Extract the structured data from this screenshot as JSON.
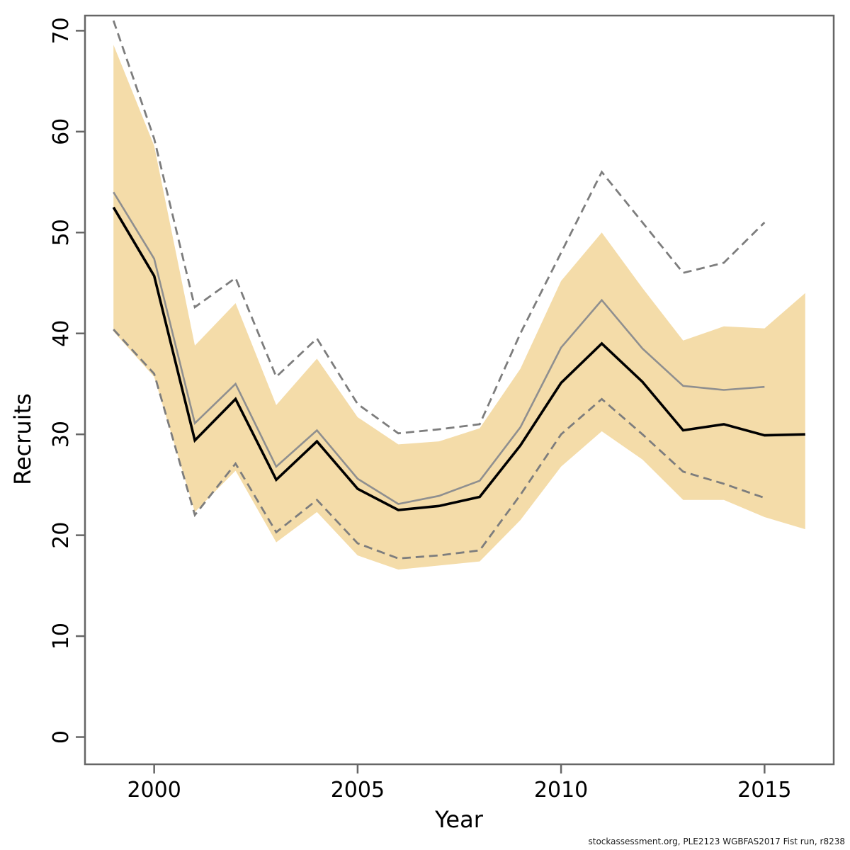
{
  "footer": {
    "text": "stockassessment.org, PLE2123 WGBFAS2017 Fist run, r8238"
  },
  "chart_data": {
    "type": "line",
    "title": "",
    "xlabel": "Year",
    "ylabel": "Recruits",
    "xlim": [
      1998.3,
      2016.7
    ],
    "ylim": [
      -2.7,
      71.5
    ],
    "x_ticks": [
      2000,
      2005,
      2010,
      2015
    ],
    "y_ticks": [
      0,
      10,
      20,
      30,
      40,
      50,
      60,
      70
    ],
    "grid": false,
    "legend": "none",
    "years": [
      1999,
      2000,
      2001,
      2002,
      2003,
      2004,
      2005,
      2006,
      2007,
      2008,
      2009,
      2010,
      2011,
      2012,
      2013,
      2014,
      2015,
      2016
    ],
    "band": {
      "upper": [
        68.6,
        58.6,
        38.8,
        43.0,
        32.9,
        37.5,
        31.7,
        29.0,
        29.3,
        30.6,
        36.5,
        45.2,
        50.0,
        44.5,
        39.3,
        40.7,
        40.5,
        44.0
      ],
      "lower": [
        40.2,
        35.7,
        22.3,
        26.4,
        19.3,
        22.3,
        18.0,
        16.6,
        17.0,
        17.4,
        21.5,
        26.8,
        30.3,
        27.5,
        23.5,
        23.5,
        21.8,
        20.6
      ]
    },
    "series": [
      {
        "name": "comparison-ci-upper",
        "style": "dashed-gray",
        "values": [
          71.0,
          59.3,
          42.6,
          45.5,
          35.7,
          39.5,
          33.0,
          30.1,
          30.5,
          31.0,
          40.0,
          48.0,
          56.0,
          51.0,
          46.0,
          47.0,
          51.0
        ]
      },
      {
        "name": "comparison-ci-lower",
        "style": "dashed-gray",
        "values": [
          40.4,
          36.0,
          22.0,
          27.1,
          20.3,
          23.5,
          19.2,
          17.7,
          18.0,
          18.5,
          24.0,
          30.0,
          33.5,
          30.0,
          26.3,
          25.1,
          23.7
        ]
      },
      {
        "name": "comparison-estimate",
        "style": "solid-gray",
        "values": [
          54.0,
          47.4,
          31.1,
          35.0,
          26.8,
          30.4,
          25.6,
          23.1,
          23.9,
          25.4,
          30.7,
          38.6,
          43.3,
          38.5,
          34.8,
          34.4,
          34.7
        ]
      },
      {
        "name": "recruits-estimate",
        "style": "solid-black",
        "values": [
          52.5,
          45.7,
          29.4,
          33.5,
          25.5,
          29.3,
          24.6,
          22.5,
          22.9,
          23.8,
          28.9,
          35.1,
          39.0,
          35.2,
          30.4,
          31.0,
          29.9,
          30.0
        ]
      }
    ],
    "colors": {
      "band_fill": "#F4DCA9",
      "solid_black": "#000000",
      "solid_gray": "#8F8F8F",
      "dashed_gray": "#7D7D7D",
      "axis": "#666666",
      "label": "#000000"
    }
  }
}
